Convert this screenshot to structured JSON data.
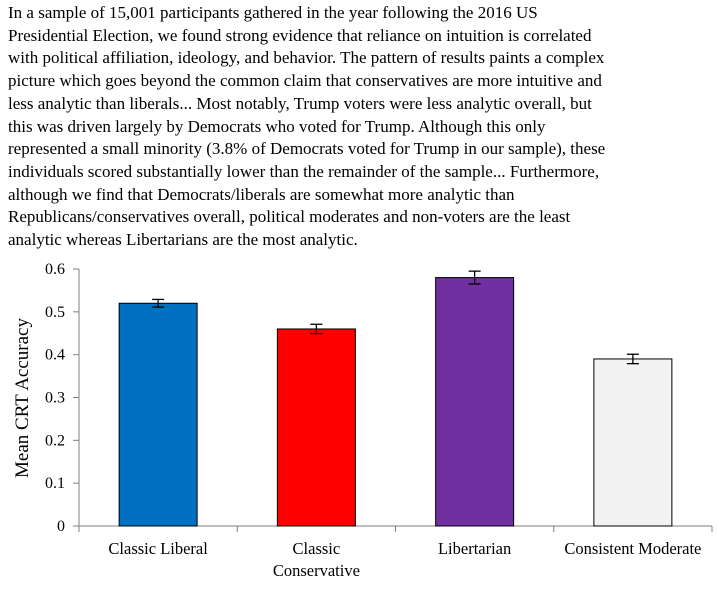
{
  "paragraph": {
    "lines": [
      "In a sample of 15,001 participants gathered in the year following the 2016 US",
      "Presidential Election, we found strong evidence that reliance on intuition is correlated",
      "with political affiliation, ideology, and behavior. The pattern of results paints a complex",
      "picture which goes beyond the common claim that conservatives are more intuitive and",
      "less analytic than liberals... Most notably, Trump voters were less analytic overall, but",
      "this was driven largely by Democrats who voted for Trump. Although this only",
      "represented a small minority (3.8% of Democrats voted for Trump in our sample), these",
      "individuals scored substantially lower than the remainder of the sample... Furthermore,",
      "although we find that Democrats/liberals are somewhat more analytic than",
      "Republicans/conservatives overall, political moderates and non-voters are the least",
      "analytic whereas Libertarians are the most analytic."
    ]
  },
  "chart_data": {
    "type": "bar",
    "title": "",
    "xlabel": "",
    "ylabel": "Mean CRT Accuracy",
    "ylim": [
      0,
      0.6
    ],
    "yticks": [
      "0",
      "0.1",
      "0.2",
      "0.3",
      "0.4",
      "0.5",
      "0.6"
    ],
    "categories": [
      [
        "Classic Liberal"
      ],
      [
        "Classic",
        "Conservative"
      ],
      [
        "Libertarian"
      ],
      [
        "Consistent Moderate"
      ]
    ],
    "values": [
      0.52,
      0.46,
      0.58,
      0.39
    ],
    "errors": [
      0.009,
      0.011,
      0.015,
      0.011
    ],
    "colors": [
      "#0070c0",
      "#ff0000",
      "#7030a0",
      "#f2f2f2"
    ],
    "grid": false
  }
}
